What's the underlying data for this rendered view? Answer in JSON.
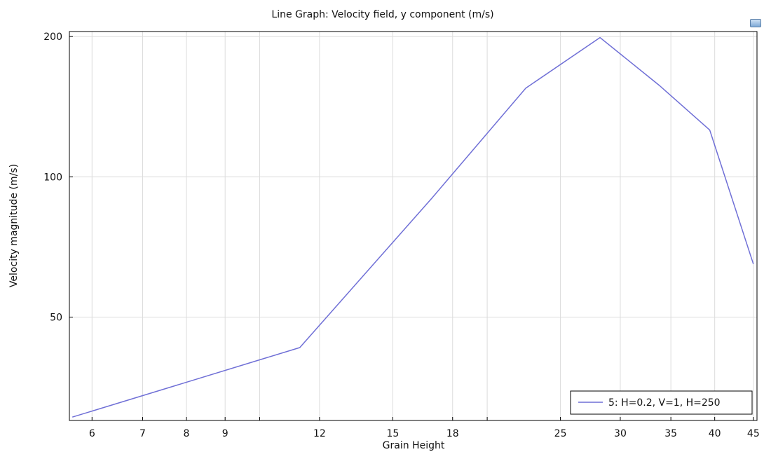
{
  "chart_data": {
    "type": "line",
    "title": "Line Graph: Velocity field, y component (m/s)",
    "xlabel": "Grain Height",
    "ylabel": "Velocity magnitude (m/s)",
    "xscale": "log",
    "yscale": "log",
    "xlim": [
      5.6,
      45.5
    ],
    "ylim": [
      30,
      205
    ],
    "x_ticks": [
      6,
      7,
      8,
      9,
      12,
      15,
      18,
      25,
      30,
      35,
      40,
      45
    ],
    "x_tick_labels": [
      "6",
      "7",
      "8",
      "9",
      "12",
      "15",
      "18",
      "25",
      "30",
      "35",
      "40",
      "45"
    ],
    "x_minor_gridlines": [
      10,
      20
    ],
    "y_ticks": [
      50,
      100,
      200
    ],
    "y_tick_labels": [
      "50",
      "100",
      "200"
    ],
    "grid": true,
    "legend_position": "bottom-right",
    "series": [
      {
        "name": "5: H=0.2, V=1, H=250",
        "color": "#6f6fd6",
        "x": [
          5.65,
          11.3,
          16.9,
          22.5,
          28.2,
          33.8,
          39.4,
          45.0
        ],
        "y": [
          30.5,
          43,
          90,
          155,
          199,
          157,
          126,
          65
        ]
      }
    ]
  },
  "toolbar": {
    "icon": "image-export-icon"
  }
}
